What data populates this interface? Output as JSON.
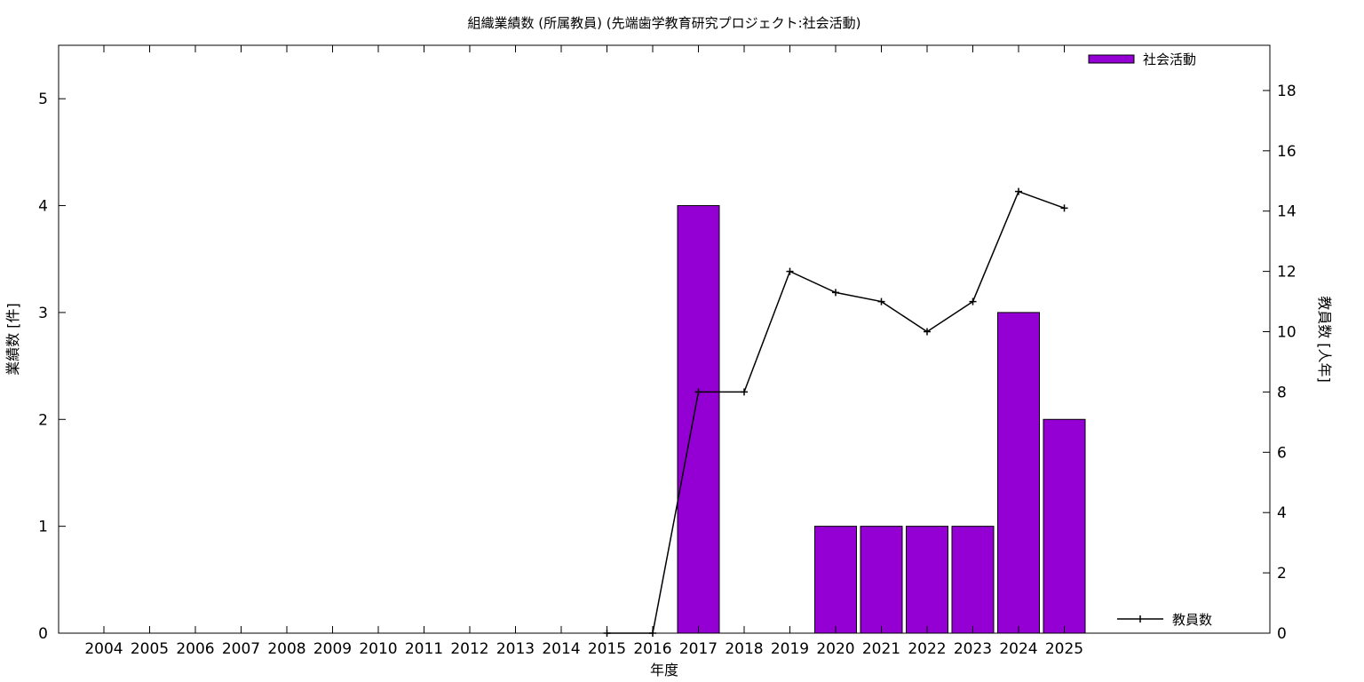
{
  "chart_data": {
    "type": "bar",
    "title": "組織業績数 (所属教員) (先端歯学教育研究プロジェクト:社会活動)",
    "xlabel": "年度",
    "ylabel": "業績数 [件]",
    "y2label": "教員数 [人年]",
    "categories": [
      "2004",
      "2005",
      "2006",
      "2007",
      "2008",
      "2009",
      "2010",
      "2011",
      "2012",
      "2013",
      "2014",
      "2015",
      "2016",
      "2017",
      "2018",
      "2019",
      "2020",
      "2021",
      "2022",
      "2023",
      "2024",
      "2025"
    ],
    "ylim": [
      0,
      5.5
    ],
    "yticks": [
      0,
      1,
      2,
      3,
      4,
      5
    ],
    "y2lim": [
      0,
      19.5
    ],
    "y2ticks": [
      0,
      2,
      4,
      6,
      8,
      10,
      12,
      14,
      16,
      18
    ],
    "series": [
      {
        "name": "社会活動",
        "type": "bar",
        "axis": "left",
        "color": "#9400d3",
        "values": [
          0,
          0,
          0,
          0,
          0,
          0,
          0,
          0,
          0,
          0,
          0,
          0,
          0,
          4,
          0,
          0,
          1,
          1,
          1,
          1,
          3,
          2
        ]
      },
      {
        "name": "教員数",
        "type": "line",
        "axis": "right",
        "color": "#000000",
        "x": [
          "2015",
          "2016",
          "2017",
          "2018",
          "2019",
          "2020",
          "2021",
          "2022",
          "2023",
          "2024",
          "2025"
        ],
        "values": [
          0,
          0,
          8,
          8,
          12,
          11.3,
          11,
          10,
          11,
          14.65,
          14.1
        ]
      }
    ],
    "grid": false,
    "legend": [
      "top-right",
      "bottom-right"
    ]
  }
}
